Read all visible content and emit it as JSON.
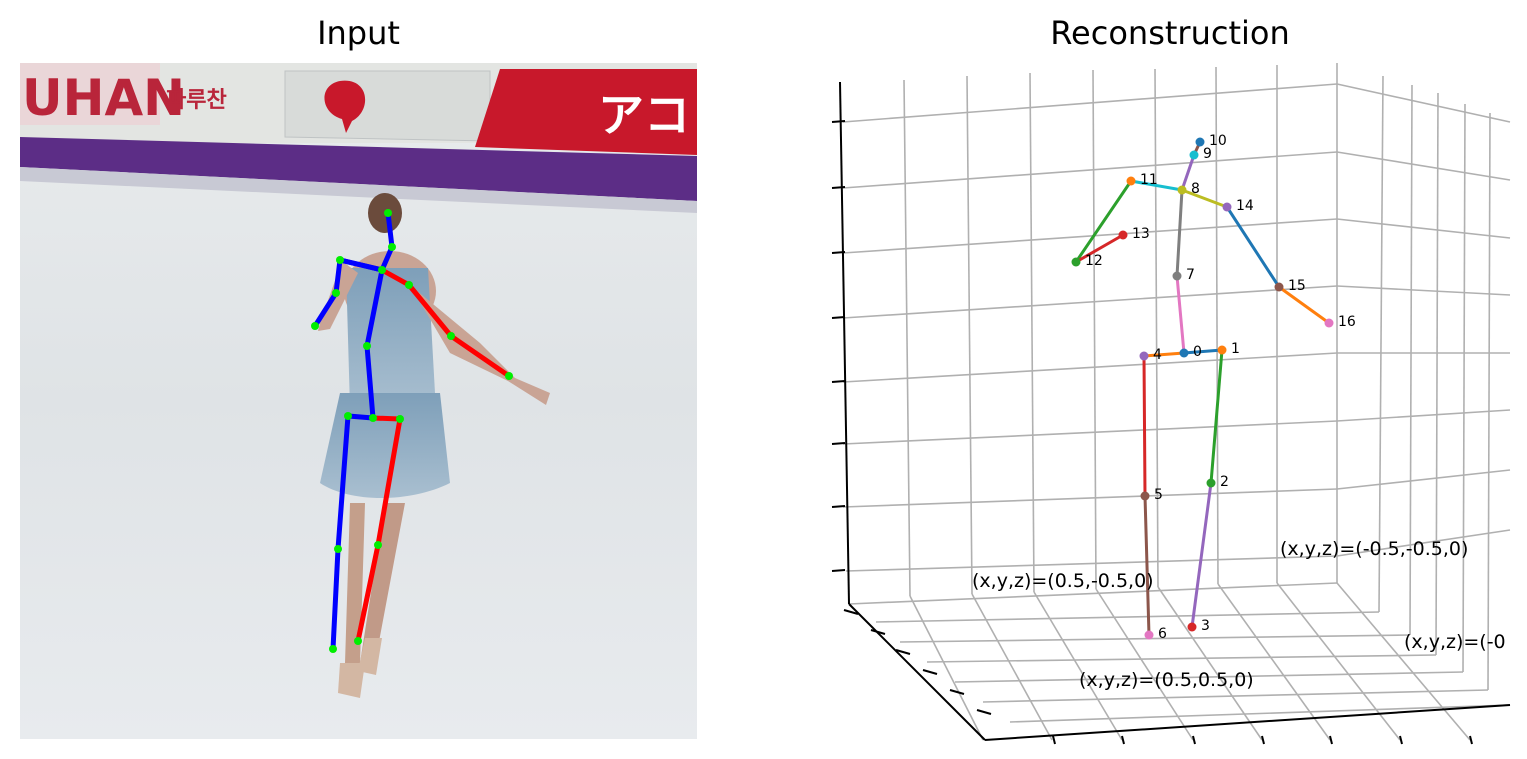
{
  "titles": {
    "left": "Input",
    "right": "Reconstruction"
  },
  "input_photo": {
    "banner_text_left": "UHAN",
    "banner_text_korean": "파루찬",
    "banner_text_right": "アコ"
  },
  "skeleton_2d_colors": {
    "left": "#0000ff",
    "right": "#ff0000",
    "joint": "#00ff00"
  },
  "joints_3d": [
    {
      "id": "0",
      "color": "#1f77b4"
    },
    {
      "id": "1",
      "color": "#ff7f0e"
    },
    {
      "id": "2",
      "color": "#2ca02c"
    },
    {
      "id": "3",
      "color": "#d62728"
    },
    {
      "id": "4",
      "color": "#9467bd"
    },
    {
      "id": "5",
      "color": "#8c564b"
    },
    {
      "id": "6",
      "color": "#e377c2"
    },
    {
      "id": "7",
      "color": "#7f7f7f"
    },
    {
      "id": "8",
      "color": "#bcbd22"
    },
    {
      "id": "9",
      "color": "#17becf"
    },
    {
      "id": "10",
      "color": "#1f77b4"
    },
    {
      "id": "11",
      "color": "#ff7f0e"
    },
    {
      "id": "12",
      "color": "#2ca02c"
    },
    {
      "id": "13",
      "color": "#d62728"
    },
    {
      "id": "14",
      "color": "#9467bd"
    },
    {
      "id": "15",
      "color": "#8c564b"
    },
    {
      "id": "16",
      "color": "#e377c2"
    }
  ],
  "bones_3d": [
    {
      "from": "0",
      "to": "1",
      "color": "#1f77b4"
    },
    {
      "from": "1",
      "to": "2",
      "color": "#2ca02c"
    },
    {
      "from": "2",
      "to": "3",
      "color": "#9467bd"
    },
    {
      "from": "0",
      "to": "4",
      "color": "#ff7f0e"
    },
    {
      "from": "4",
      "to": "5",
      "color": "#d62728"
    },
    {
      "from": "5",
      "to": "6",
      "color": "#8c564b"
    },
    {
      "from": "0",
      "to": "7",
      "color": "#e377c2"
    },
    {
      "from": "7",
      "to": "8",
      "color": "#7f7f7f"
    },
    {
      "from": "8",
      "to": "9",
      "color": "#9467bd"
    },
    {
      "from": "9",
      "to": "10",
      "color": "#8c564b"
    },
    {
      "from": "8",
      "to": "11",
      "color": "#17becf"
    },
    {
      "from": "11",
      "to": "12",
      "color": "#2ca02c"
    },
    {
      "from": "12",
      "to": "13",
      "color": "#d62728"
    },
    {
      "from": "8",
      "to": "14",
      "color": "#bcbd22"
    },
    {
      "from": "14",
      "to": "15",
      "color": "#1f77b4"
    },
    {
      "from": "15",
      "to": "16",
      "color": "#ff7f0e"
    }
  ],
  "corner_labels": {
    "c1": "(x,y,z)=(0.5,-0.5,0)",
    "c2": "(x,y,z)=(-0.5,-0.5,0)",
    "c3": "(x,y,z)=(0.5,0.5,0)",
    "c4": "(x,y,z)=(-0"
  }
}
